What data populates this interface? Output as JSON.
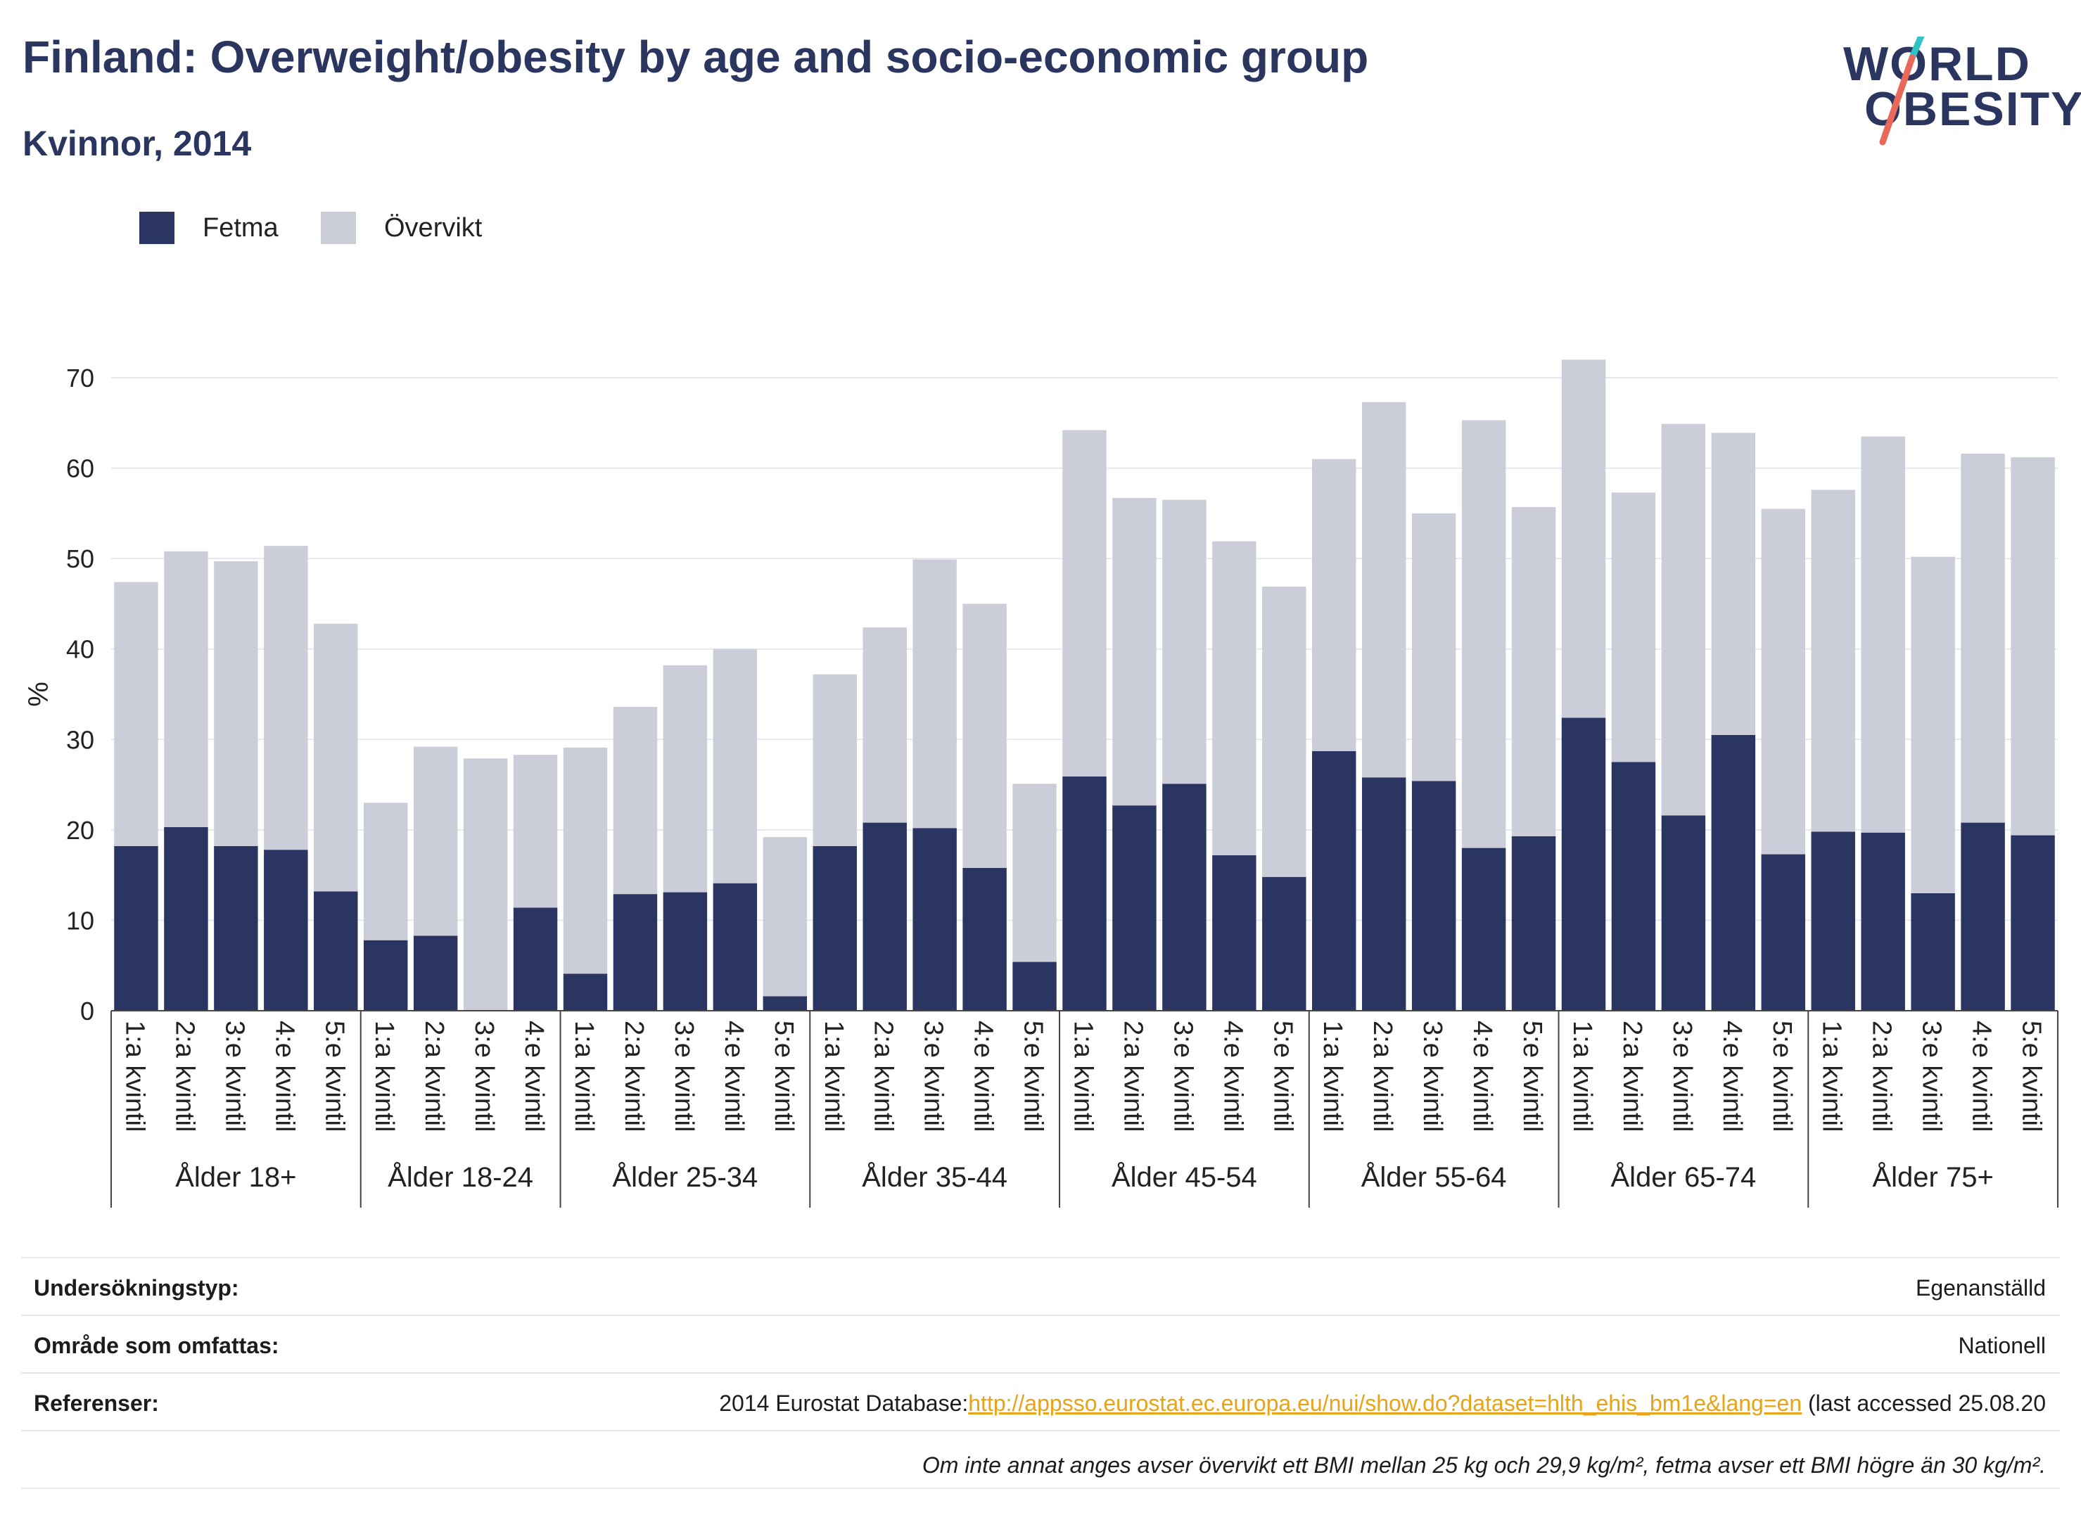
{
  "header": {
    "title": "Finland: Overweight/obesity by age and socio-economic group",
    "subtitle": "Kvinnor, 2014"
  },
  "logo": {
    "line1": "WORLD",
    "line2": "OBESITY"
  },
  "colors": {
    "fetma": "#2b3561",
    "overvikt": "#cbcdd9",
    "accent_teal": "#2ec4c4",
    "accent_red": "#e8685a",
    "link": "#e8a317"
  },
  "chart_data": {
    "type": "bar",
    "stacked": true,
    "ylabel": "%",
    "ylim": [
      0,
      70
    ],
    "yticks": [
      0,
      10,
      20,
      30,
      40,
      50,
      60,
      70
    ],
    "grid": true,
    "legend_position": "top-left",
    "legend": [
      "Fetma",
      "Övervikt"
    ],
    "groups": [
      {
        "name": "Ålder 18+",
        "categories": [
          "1:a kvintil",
          "2:a kvintil",
          "3:e kvintil",
          "4:e kvintil",
          "5:e kvintil"
        ],
        "fetma": [
          18.2,
          20.3,
          18.2,
          17.8,
          13.2
        ],
        "overvikt": [
          29.2,
          30.5,
          31.5,
          33.6,
          29.6
        ]
      },
      {
        "name": "Ålder 18-24",
        "categories": [
          "1:a kvintil",
          "2:a kvintil",
          "3:e kvintil",
          "4:e kvintil"
        ],
        "fetma": [
          7.8,
          8.3,
          0,
          11.4
        ],
        "overvikt": [
          15.2,
          20.9,
          27.9,
          16.9
        ]
      },
      {
        "name": "Ålder 25-34",
        "categories": [
          "1:a kvintil",
          "2:a kvintil",
          "3:e kvintil",
          "4:e kvintil",
          "5:e kvintil"
        ],
        "fetma": [
          4.1,
          12.9,
          13.1,
          14.1,
          1.6
        ],
        "overvikt": [
          25.0,
          20.7,
          25.1,
          25.9,
          17.6
        ]
      },
      {
        "name": "Ålder 35-44",
        "categories": [
          "1:a kvintil",
          "2:a kvintil",
          "3:e kvintil",
          "4:e kvintil",
          "5:e kvintil"
        ],
        "fetma": [
          18.2,
          20.8,
          20.2,
          15.8,
          5.4
        ],
        "overvikt": [
          19.0,
          21.6,
          29.7,
          29.2,
          19.7
        ]
      },
      {
        "name": "Ålder 45-54",
        "categories": [
          "1:a kvintil",
          "2:a kvintil",
          "3:e kvintil",
          "4:e kvintil",
          "5:e kvintil"
        ],
        "fetma": [
          25.9,
          22.7,
          25.1,
          17.2,
          14.8
        ],
        "overvikt": [
          38.3,
          34.0,
          31.4,
          34.7,
          32.1
        ]
      },
      {
        "name": "Ålder 55-64",
        "categories": [
          "1:a kvintil",
          "2:a kvintil",
          "3:e kvintil",
          "4:e kvintil",
          "5:e kvintil"
        ],
        "fetma": [
          28.7,
          25.8,
          25.4,
          18.0,
          19.3
        ],
        "overvikt": [
          32.3,
          41.5,
          29.6,
          47.3,
          36.4
        ]
      },
      {
        "name": "Ålder 65-74",
        "categories": [
          "1:a kvintil",
          "2:a kvintil",
          "3:e kvintil",
          "4:e kvintil",
          "5:e kvintil"
        ],
        "fetma": [
          32.4,
          27.5,
          21.6,
          30.5,
          17.3
        ],
        "overvikt": [
          39.6,
          29.8,
          43.3,
          33.4,
          38.2
        ]
      },
      {
        "name": "Ålder 75+",
        "categories": [
          "1:a kvintil",
          "2:a kvintil",
          "3:e kvintil",
          "4:e kvintil",
          "5:e kvintil"
        ],
        "fetma": [
          19.8,
          19.7,
          13.0,
          20.8,
          19.4
        ],
        "overvikt": [
          37.8,
          43.8,
          37.2,
          40.8,
          41.8
        ]
      }
    ]
  },
  "footer": {
    "survey_label": "Undersökningstyp:",
    "survey_value": "Egenanställd",
    "area_label": "Område som omfattas:",
    "area_value": "Nationell",
    "ref_label": "Referenser:",
    "ref_prefix": "2014 Eurostat Database:",
    "ref_link": "http://appsso.eurostat.ec.europa.eu/nui/show.do?dataset=hlth_ehis_bm1e&lang=en",
    "ref_suffix": " (last accessed 25.08.20",
    "note": "Om inte annat anges avser övervikt ett BMI mellan 25 kg och 29,9 kg/m², fetma avser ett BMI högre än 30 kg/m²."
  }
}
